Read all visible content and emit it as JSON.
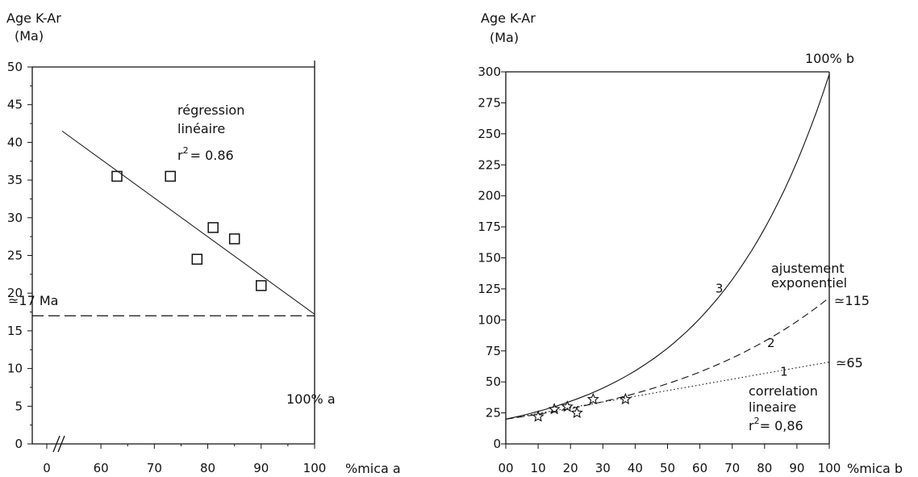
{
  "chart_data": [
    {
      "type": "scatter",
      "ylabel": "Age K-Ar",
      "yunit": "(Ma)",
      "xlabel": "%mica a",
      "xlim_broken_axis": {
        "origin_label": "0",
        "start": 55,
        "end": 100
      },
      "ylim": [
        0,
        50
      ],
      "xticks": [
        "0",
        "60",
        "70",
        "80",
        "90",
        "100"
      ],
      "yticks": [
        "0",
        "5",
        "10",
        "15",
        "20",
        "25",
        "30",
        "35",
        "40",
        "45",
        "50"
      ],
      "series": [
        {
          "marker": "square",
          "x": [
            63,
            73,
            78,
            81,
            85,
            90
          ],
          "y": [
            35.5,
            35.5,
            24.5,
            28.7,
            27.2,
            21
          ]
        }
      ],
      "regression_line": {
        "x": [
          55,
          100
        ],
        "y": [
          41.5,
          17.2
        ]
      },
      "reference_line": {
        "y": 17,
        "style": "dashed",
        "label": "≃17 Ma"
      },
      "annotations": {
        "regression_l1": "régression",
        "regression_l2": "linéaire",
        "r2_prefix": "r",
        "r2_exp": "2",
        "r2_value": "= 0.86",
        "corner": "100% a"
      }
    },
    {
      "type": "line",
      "ylabel": "Age K-Ar",
      "yunit": "(Ma)",
      "xlabel": "%mica b",
      "xlim": [
        0,
        100
      ],
      "ylim": [
        0,
        300
      ],
      "xticks": [
        "00",
        "10",
        "20",
        "30",
        "40",
        "50",
        "60",
        "70",
        "80",
        "90",
        "100"
      ],
      "yticks": [
        "0",
        "25",
        "50",
        "75",
        "100",
        "125",
        "150",
        "175",
        "200",
        "225",
        "250",
        "275",
        "300"
      ],
      "points": {
        "marker": "star",
        "x": [
          10,
          15,
          19,
          22,
          27,
          37
        ],
        "y": [
          22,
          28,
          30,
          25,
          36,
          36
        ]
      },
      "curves": [
        {
          "name": "1",
          "style": "dotted",
          "start": 20,
          "end": 66
        },
        {
          "name": "2",
          "style": "dashed",
          "start": 20,
          "end": 118
        },
        {
          "name": "3",
          "style": "solid",
          "start": 20,
          "end": 298
        }
      ],
      "annotations": {
        "top_right": "100% b",
        "exp_l1": "ajustement",
        "exp_l2": "exponentiel",
        "approx_115": "≃115",
        "approx_65": "≃65",
        "corr_l1": "correlation",
        "corr_l2": "lineaire",
        "r2_prefix": "r",
        "r2_exp": "2",
        "r2_value": "= 0,86"
      }
    }
  ]
}
